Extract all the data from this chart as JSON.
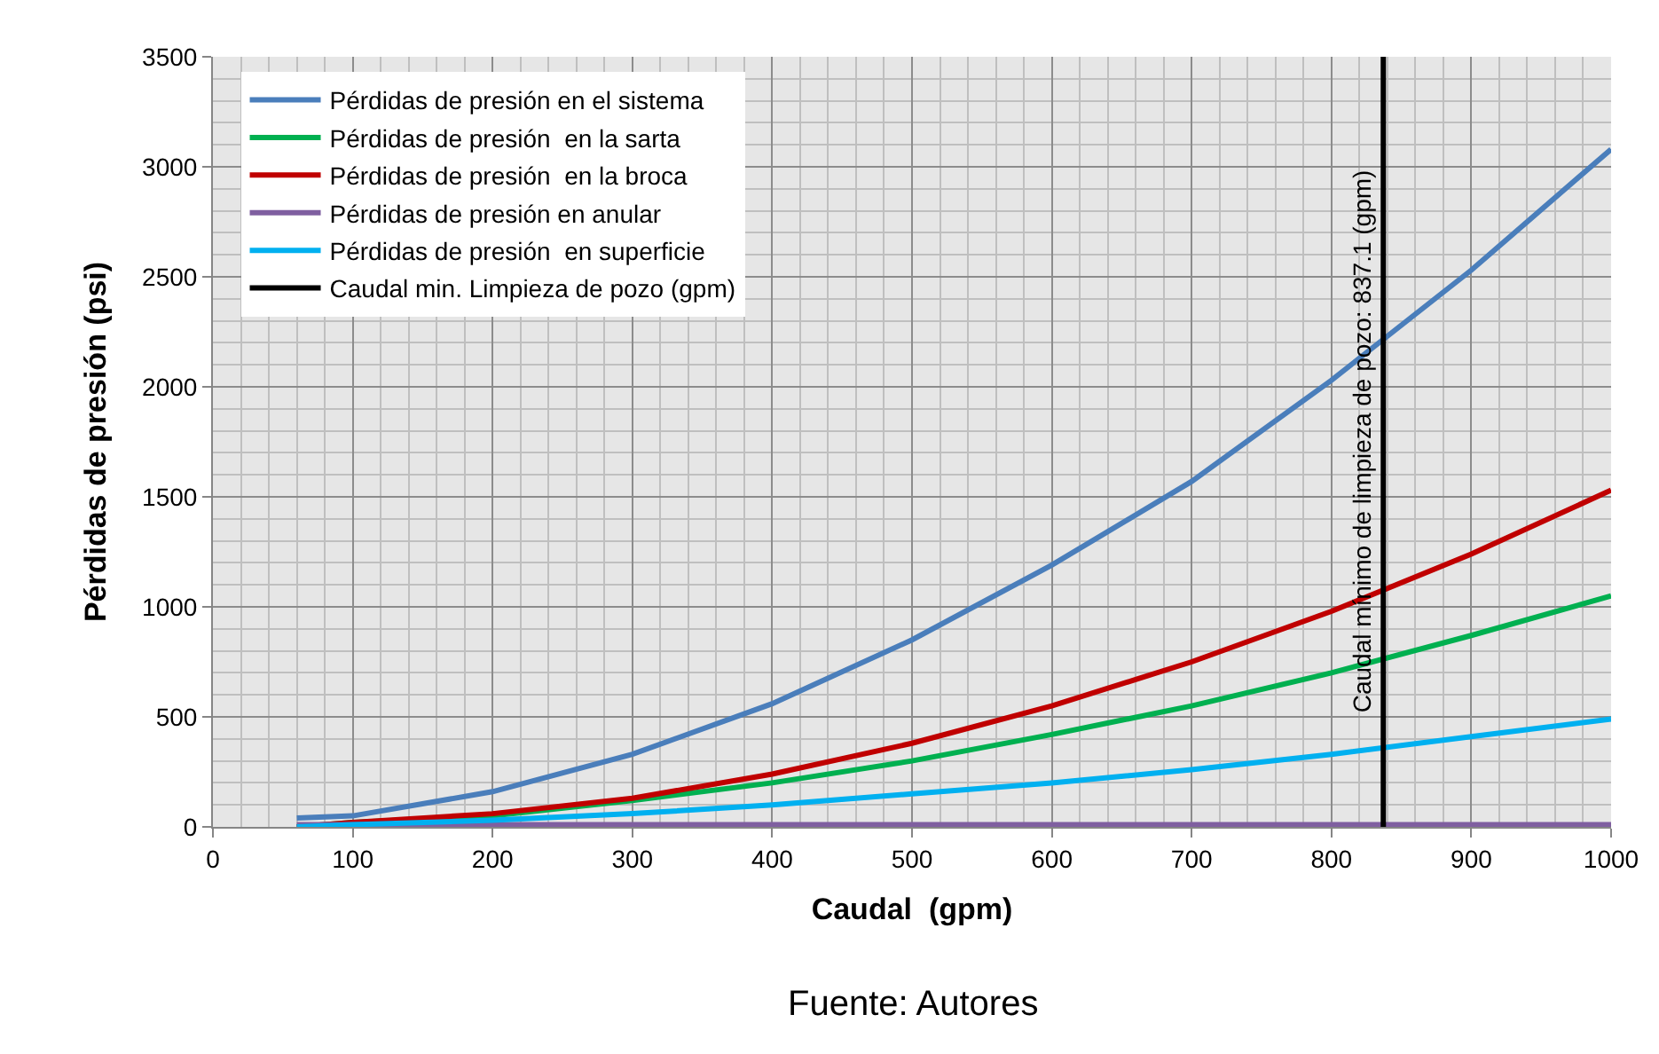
{
  "chart_data": {
    "type": "line",
    "xlabel": "Caudal  (gpm)",
    "ylabel": "Pérdidas de presión (psi)",
    "x": [
      60,
      100,
      200,
      300,
      400,
      500,
      600,
      700,
      800,
      900,
      1000
    ],
    "series": [
      {
        "name": "Pérdidas de presión en el sistema",
        "color": "#4a7ebb",
        "values": [
          40,
          50,
          160,
          330,
          560,
          850,
          1190,
          1570,
          2030,
          2530,
          3080
        ]
      },
      {
        "name": "Pérdidas de presión  en la sarta",
        "color": "#00b050",
        "values": [
          0,
          20,
          50,
          120,
          200,
          300,
          420,
          550,
          700,
          870,
          1050
        ]
      },
      {
        "name": "Pérdidas de presión  en la broca",
        "color": "#c00000",
        "values": [
          0,
          20,
          60,
          130,
          240,
          380,
          550,
          750,
          980,
          1240,
          1530
        ]
      },
      {
        "name": "Pérdidas de presión en anular",
        "color": "#7f5fa0",
        "values": [
          10,
          10,
          10,
          10,
          10,
          10,
          10,
          10,
          10,
          10,
          10
        ]
      },
      {
        "name": "Pérdidas de presión  en superficie",
        "color": "#00b0f0",
        "values": [
          0,
          10,
          30,
          60,
          100,
          150,
          200,
          260,
          330,
          410,
          490
        ]
      },
      {
        "name": "Caudal min. Limpieza de pozo (gpm)",
        "color": "#000000",
        "x": [
          837.1,
          837.1
        ],
        "values": [
          0,
          3500
        ]
      }
    ],
    "annotations": [
      {
        "text": "Caudal mínimo de limpieza de pozo: 837.1 (gpm)",
        "x": 837.1,
        "y": 1750
      },
      "Fuente: Autores"
    ],
    "xlim": [
      0,
      1000
    ],
    "xticks": [
      0,
      100,
      200,
      300,
      400,
      500,
      600,
      700,
      800,
      900,
      1000
    ],
    "ylim": [
      0,
      3500
    ],
    "yticks": [
      0,
      500,
      1000,
      1500,
      2000,
      2500,
      3000,
      3500
    ],
    "grid": true,
    "legend": "top left",
    "marker": "none",
    "line_style": "solid"
  }
}
